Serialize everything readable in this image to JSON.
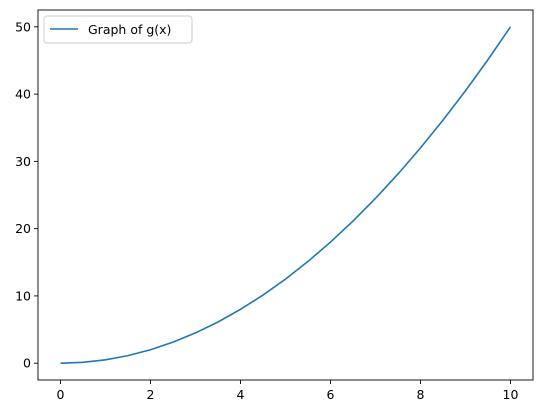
{
  "chart_data": {
    "type": "line",
    "title": "",
    "xlabel": "",
    "ylabel": "",
    "xlim": [
      -0.5,
      10.5
    ],
    "ylim": [
      -2.5,
      52.5
    ],
    "xticks": [
      0,
      2,
      4,
      6,
      8,
      10
    ],
    "yticks": [
      0,
      10,
      20,
      30,
      40,
      50
    ],
    "xtick_labels": [
      "0",
      "2",
      "4",
      "6",
      "8",
      "10"
    ],
    "ytick_labels": [
      "0",
      "10",
      "20",
      "30",
      "40",
      "50"
    ],
    "grid": false,
    "legend": {
      "placement": "top-left",
      "entries": [
        "Graph of g(x)"
      ]
    },
    "series": [
      {
        "name": "Graph of g(x)",
        "color": "#1f77b4",
        "x": [
          0,
          0.5,
          1,
          1.5,
          2,
          2.5,
          3,
          3.5,
          4,
          4.5,
          5,
          5.5,
          6,
          6.5,
          7,
          7.5,
          8,
          8.5,
          9,
          9.5,
          10
        ],
        "y": [
          0,
          0.125,
          0.5,
          1.125,
          2,
          3.125,
          4.5,
          6.125,
          8,
          10.125,
          12.5,
          15.125,
          18,
          21.125,
          24.5,
          28.125,
          32,
          36.125,
          40.5,
          45.125,
          50
        ]
      }
    ]
  }
}
